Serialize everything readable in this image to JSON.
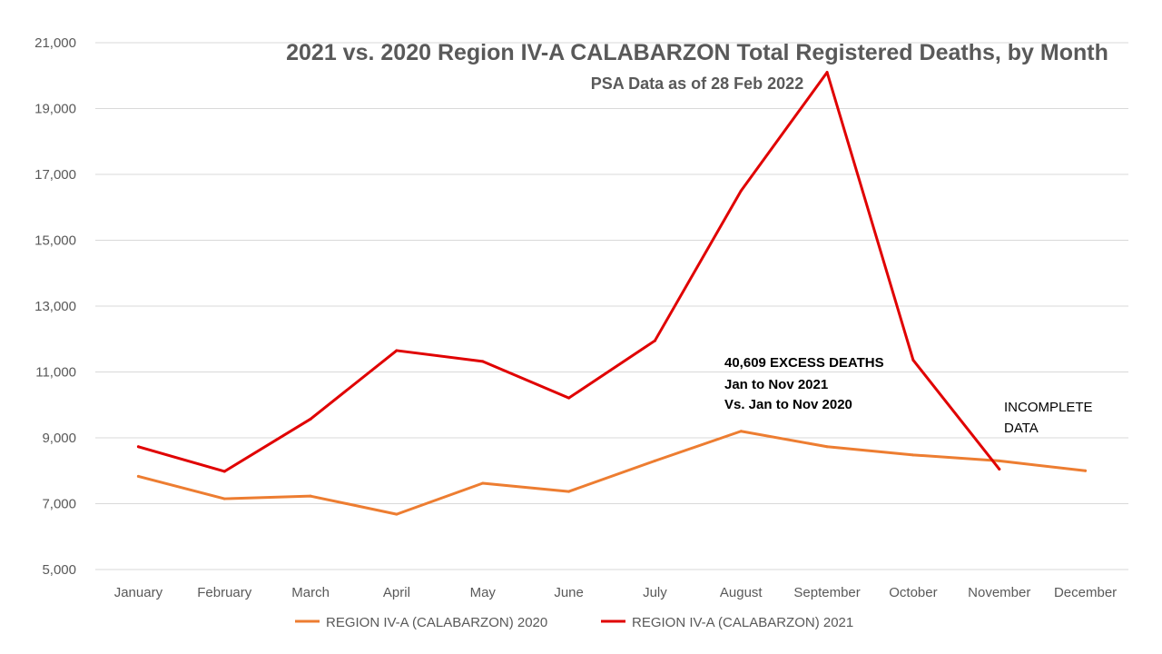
{
  "chart_data": {
    "type": "line",
    "title": "2021 vs. 2020 Region IV-A CALABARZON Total Registered Deaths, by Month",
    "subtitle": "PSA Data as of 28 Feb 2022",
    "categories": [
      "January",
      "February",
      "March",
      "April",
      "May",
      "June",
      "July",
      "August",
      "September",
      "October",
      "November",
      "December"
    ],
    "y_ticks": [
      "5,000",
      "7,000",
      "9,000",
      "11,000",
      "13,000",
      "15,000",
      "17,000",
      "19,000",
      "21,000"
    ],
    "ylim": [
      5000,
      21000
    ],
    "grid": true,
    "legend_position": "bottom",
    "series": [
      {
        "name": "REGION IV-A (CALABARZON) 2020",
        "color": "#ED7D31",
        "values": [
          7830,
          7150,
          7230,
          6680,
          7620,
          7370,
          8300,
          9200,
          8730,
          8480,
          8300,
          8000
        ]
      },
      {
        "name": "REGION IV-A (CALABARZON) 2021",
        "color": "#E00000",
        "values": [
          8730,
          7980,
          9570,
          11650,
          11320,
          10210,
          11950,
          16500,
          20100,
          11360,
          8050,
          null
        ]
      }
    ],
    "annotations": {
      "excess": [
        "40,609 EXCESS DEATHS",
        "Jan to Nov 2021",
        "Vs. Jan to Nov 2020"
      ],
      "incomplete": [
        "INCOMPLETE",
        "DATA"
      ]
    }
  }
}
